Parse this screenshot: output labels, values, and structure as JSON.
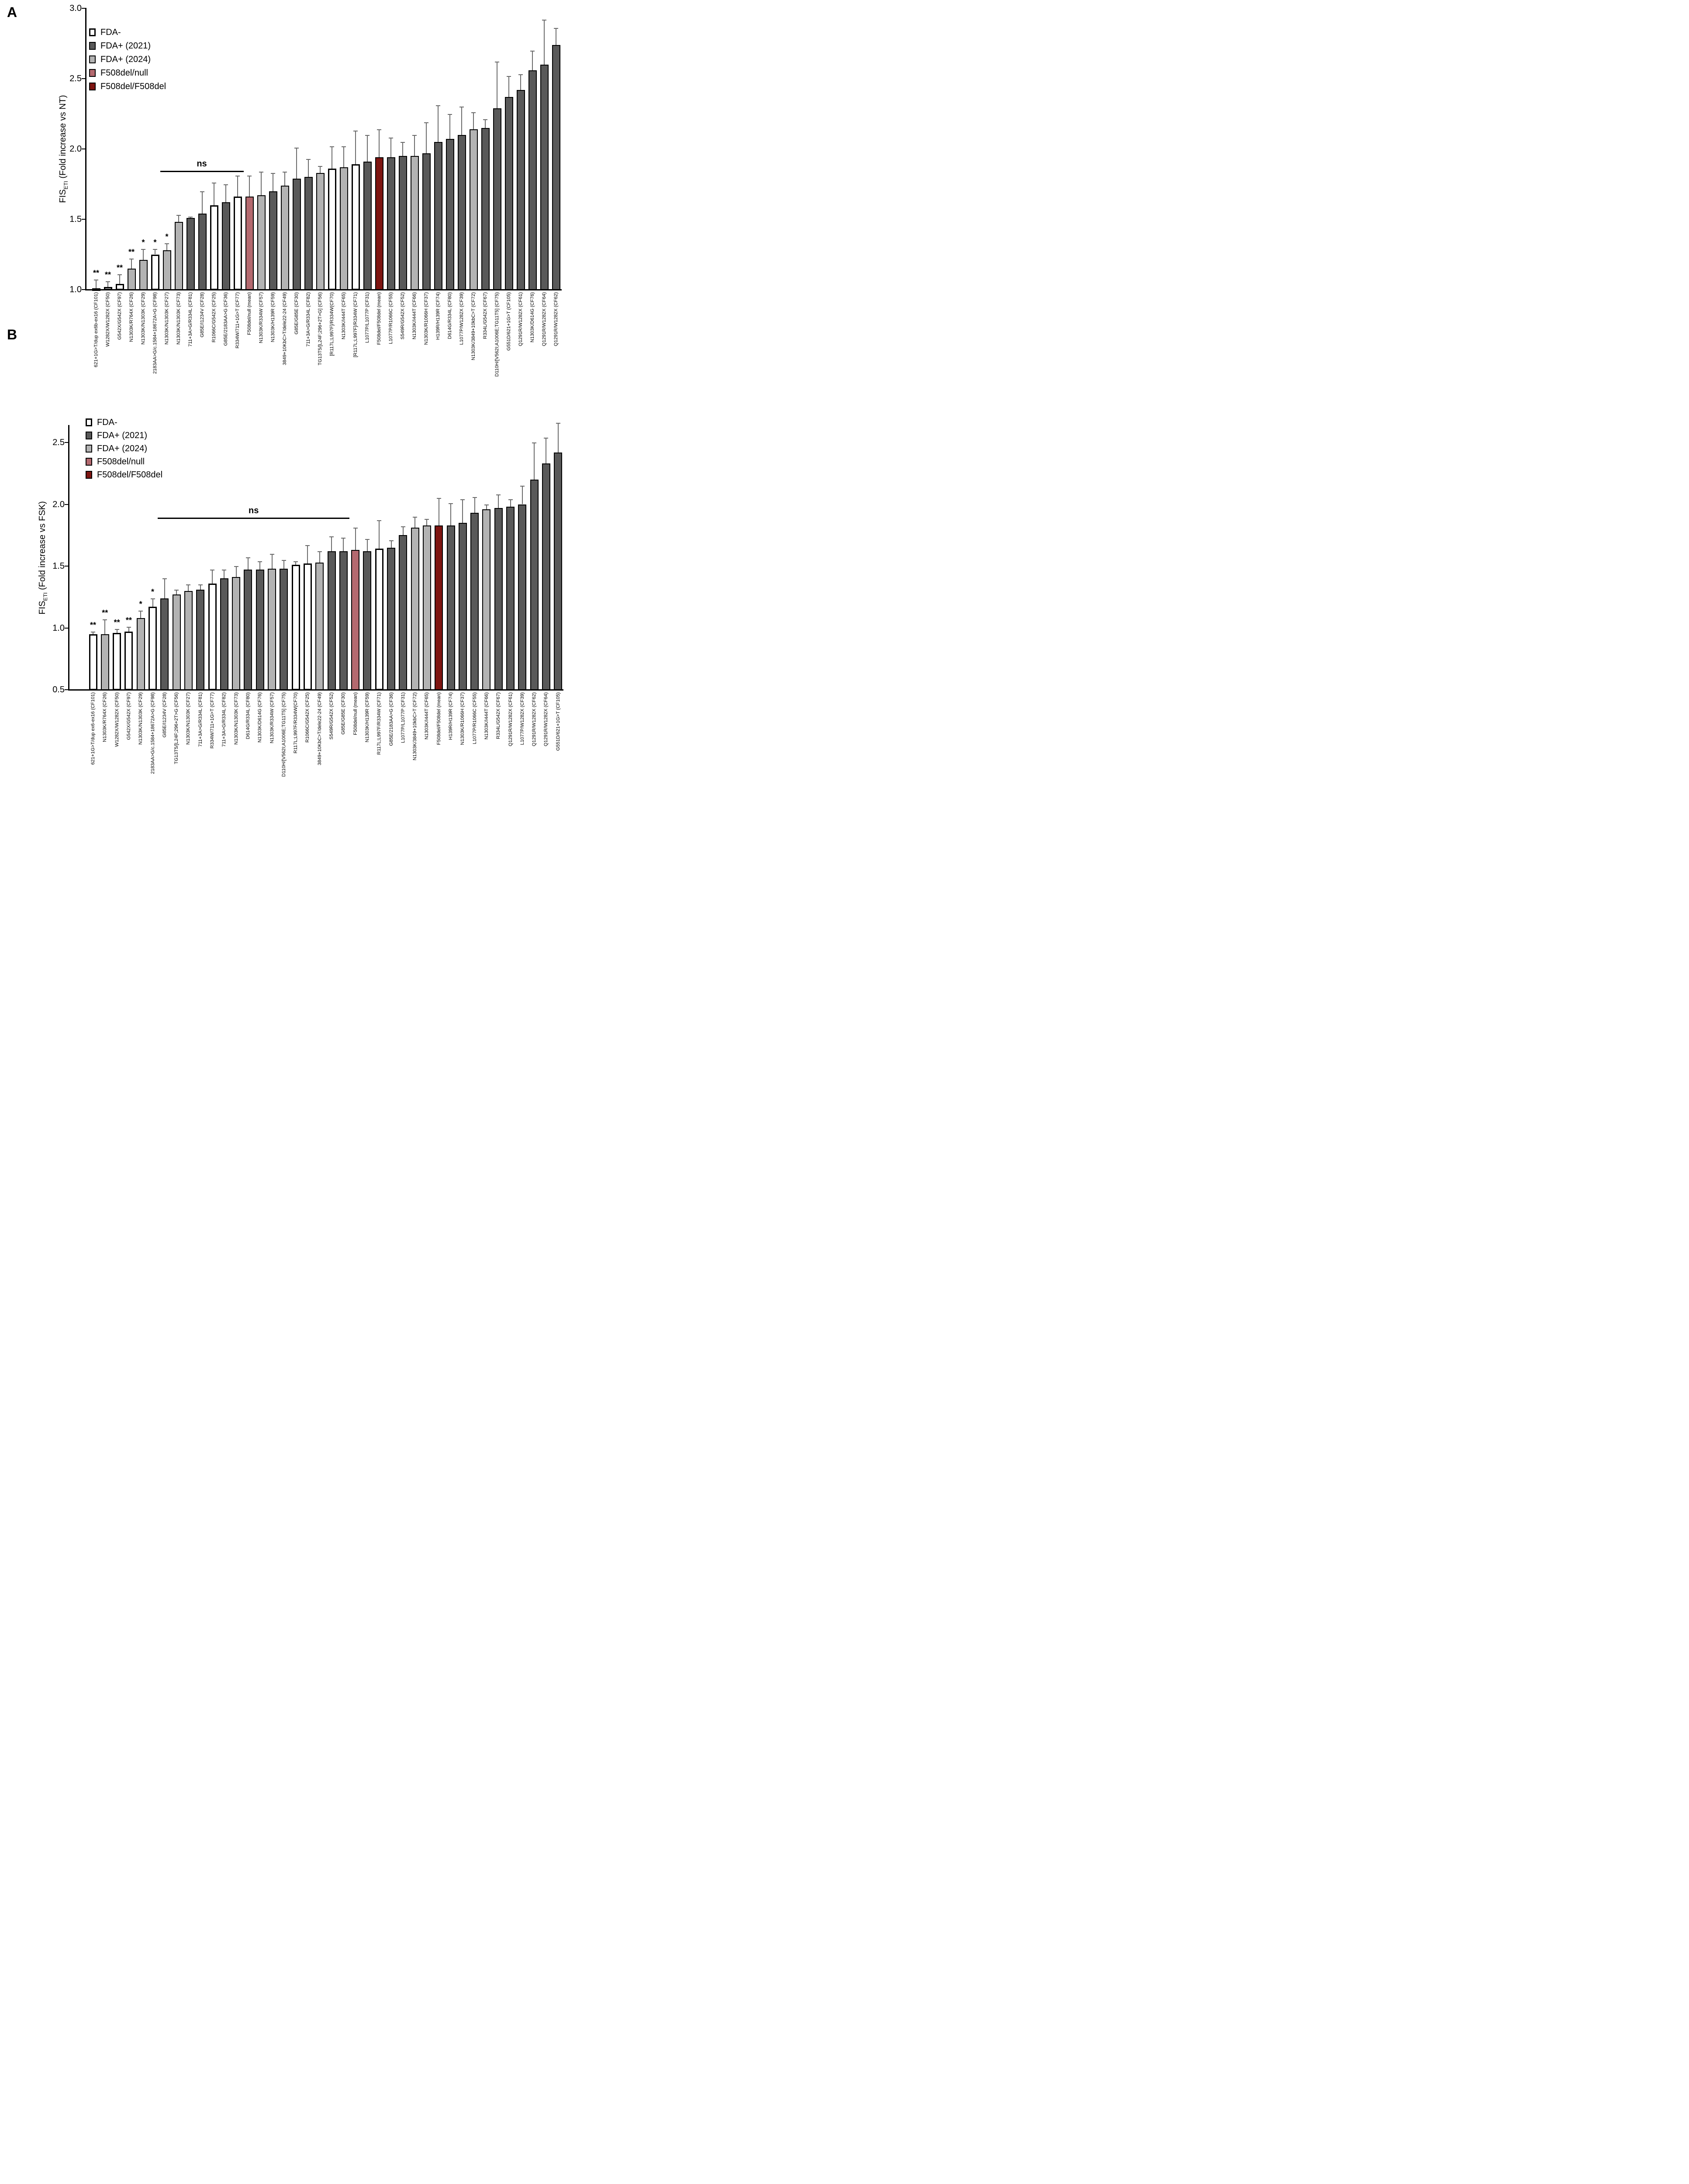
{
  "colors": {
    "fda_minus": "#ffffff",
    "fda_2021": "#595959",
    "fda_2024": "#b3b3b3",
    "f508_null": "#b4696f",
    "f508_homo": "#7e1511"
  },
  "legend": [
    {
      "label": "FDA-",
      "group": "fda_minus"
    },
    {
      "label": "FDA+ (2021)",
      "group": "fda_2021"
    },
    {
      "label": "FDA+ (2024)",
      "group": "fda_2024"
    },
    {
      "label": "F508del/null",
      "group": "f508_null"
    },
    {
      "label": "F508del/F508del",
      "group": "f508_homo"
    }
  ],
  "chart_data": [
    {
      "type": "bar",
      "id": "A",
      "panel_label": "A",
      "ylabel": {
        "main": "FIS",
        "sub": "ETI",
        "rest": " (Fold increase vs NT)"
      },
      "ylim": [
        1.0,
        3.0
      ],
      "ytick_values": [
        3.0,
        2.5,
        2.0,
        1.5,
        1.0
      ],
      "ytick_labels": [
        "3.0",
        "2.5",
        "2.0",
        "1.5",
        "1.0"
      ],
      "grid": false,
      "legend_position": "top-left",
      "ns": {
        "label": "ns",
        "start_index": 6,
        "end_index": 13
      },
      "categories": [
        "621+1G>T/dup ex6b-ex16 (CF101)",
        "W1282X/W1282X (CF50)",
        "G542X/G542X (CF97)",
        "N1303K/R764X (CF26)",
        "N1303K/N1303K (CF29)",
        "2183AA>G/c.1584+18672A>G (CF98)",
        "N1303K/N1303K (CF27)",
        "N1303K/N1303K (CF73)",
        "711+3A>G/R334L (CF81)",
        "G85E/I1234V (CF28)",
        "R1066C/G542X (CF25)",
        "G85E/2183AA>G (CF36)",
        "R334W/711+1G>T (CF77)",
        "F508del/null (mean)",
        "N1303K/R334W (CF57)",
        "N1303K/H139R (CF59)",
        "3849+10KbC>T/dele22-24 (CF49)",
        "G85E/G85E (CF30)",
        "711+3A>G/R334L (CF82)",
        "TG13T5/[L24F;296+2T>G] (CF56)",
        "[R117L;L997F]/R334W(CF70)",
        "N1303K/I444T (CF65)",
        "[R117L;L997F]/R334W (CF71)",
        "L1077P/L1077P (CF31)",
        "F508del/F508del (mean)",
        "L1077P/R1066C (CF55)",
        "S549R/G542X (CF52)",
        "N1303K/I444T (CF66)",
        "N1303K/R1066H (CF37)",
        "H139R/H139R (CF74)",
        "D614G/R334L (CF80)",
        "L1077P/W1282X (CF39)",
        "N1303K/3849+10kbC>T (CF72)",
        "R334L/G542X (CF67)",
        "D110H/[V562I;A1006E;TG11T5] (CF75)",
        "G551D/621+1G>T (CF105)",
        "Q1291R/W1282X (CF61)",
        "N1303K/D614G (CF76)",
        "Q1291R/W1282X (CF64)",
        "Q1291R/W1282X (CF62)"
      ],
      "values": [
        1.01,
        1.02,
        1.04,
        1.15,
        1.21,
        1.25,
        1.28,
        1.48,
        1.51,
        1.54,
        1.6,
        1.62,
        1.66,
        1.66,
        1.67,
        1.7,
        1.74,
        1.79,
        1.8,
        1.83,
        1.86,
        1.87,
        1.89,
        1.91,
        1.94,
        1.94,
        1.95,
        1.95,
        1.97,
        2.05,
        2.07,
        2.1,
        2.14,
        2.15,
        2.29,
        2.37,
        2.42,
        2.56,
        2.6,
        2.74
      ],
      "error_upper": [
        1.07,
        1.06,
        1.11,
        1.22,
        1.29,
        1.29,
        1.33,
        1.53,
        1.52,
        1.7,
        1.76,
        1.75,
        1.81,
        1.81,
        1.84,
        1.83,
        1.84,
        2.01,
        1.93,
        1.88,
        2.02,
        2.02,
        2.13,
        2.1,
        2.14,
        2.08,
        2.05,
        2.1,
        2.19,
        2.31,
        2.25,
        2.3,
        2.26,
        2.21,
        2.62,
        2.52,
        2.53,
        2.7,
        2.92,
        2.86
      ],
      "groups": [
        "fda_minus",
        "fda_minus",
        "fda_minus",
        "fda_2024",
        "fda_2024",
        "fda_minus",
        "fda_2024",
        "fda_2024",
        "fda_2021",
        "fda_2021",
        "fda_minus",
        "fda_2021",
        "fda_minus",
        "f508_null",
        "fda_2024",
        "fda_2021",
        "fda_2024",
        "fda_2021",
        "fda_2021",
        "fda_2024",
        "fda_minus",
        "fda_2024",
        "fda_minus",
        "fda_2021",
        "f508_homo",
        "fda_2021",
        "fda_2021",
        "fda_2024",
        "fda_2021",
        "fda_2021",
        "fda_2021",
        "fda_2021",
        "fda_2024",
        "fda_2021",
        "fda_2021",
        "fda_2021",
        "fda_2021",
        "fda_2021",
        "fda_2021",
        "fda_2021"
      ],
      "significance": [
        "**",
        "**",
        "**",
        "**",
        "*",
        "*",
        "*",
        "",
        "",
        "",
        "",
        "",
        "",
        "",
        "",
        "",
        "",
        "",
        "",
        "",
        "",
        "",
        "",
        "",
        "",
        "",
        "",
        "",
        "",
        "",
        "",
        "",
        "",
        "",
        "",
        "",
        "",
        "",
        "",
        ""
      ]
    },
    {
      "type": "bar",
      "id": "B",
      "panel_label": "B",
      "ylabel": {
        "main": "FIS",
        "sub": "ETI",
        "rest": " (Fold increase vs FSK)"
      },
      "ylim": [
        0.5,
        2.66
      ],
      "ytick_values": [
        2.5,
        2.0,
        1.5,
        1.0,
        0.5
      ],
      "ytick_labels": [
        "2.5",
        "2.0",
        "1.5",
        "1.0",
        "0.5"
      ],
      "grid": false,
      "legend_position": "top-left",
      "ns": {
        "label": "ns",
        "start_index": 6,
        "end_index": 22
      },
      "categories": [
        "621+1G>T/dup ex6-ex16 (CF101)",
        "N1303K/R764X (CF26)",
        "W1282X/W1282X (CF50)",
        "G542X/G542X (CF97)",
        "N1303K/N1303K (CF29)",
        "2183AA>G/c.1584+18672A>G (CF98)",
        "G85E/I1234V (CF28)",
        "TG13T5/[L24F;296+2T>G (CF56)",
        "N1303K/N1303K (CF27)",
        "711+3A>G/R334L (CF81)",
        "R334W/711+1G>T (CF77)",
        "711+3A>G/R334L (CF82)",
        "N1303K/N1303K (CF73)",
        "D614G/R334L (CF80)",
        "N1303K/D614G (CF76)",
        "N1303K/R334W (CF57)",
        "D110H/[V562I;A1006E;TG11T5] (CF75)",
        "R117L;L997F/R334W(CF70)",
        "R1066C/G542X (CF25)",
        "3849+10KbC>T/dele22-24 (CF49)",
        "S549R/G542X (CF52)",
        "G85E/G85E (CF30)",
        "F508del/null (mean)",
        "N1303K/H139R (CF59)",
        "R117L;L997F/R334W (CF71)",
        "G85E/2183AA>G (CF36)",
        "L1077P/L1077P (CF31)",
        "N1303K/3849+10kbC>T (CF72)",
        "N1303K/I444T (CF65)",
        "F508del/F508del (mean)",
        "H139R/H139R (CF74)",
        "N1303K/R1066H (CF37)",
        "L1077P/R1066C (CF55)",
        "N1303K/I444T (CF66)",
        "R334L/G542X (CF67)",
        "Q1291R/W1282X (CF61)",
        "L1077P/W1282X (CF39)",
        "Q1291R/W1282X (CF62)",
        "Q1291R/W1282X (CF64)",
        "G551D/621+1G>T (CF105)"
      ],
      "values": [
        0.95,
        0.95,
        0.96,
        0.97,
        1.08,
        1.17,
        1.24,
        1.27,
        1.3,
        1.31,
        1.36,
        1.4,
        1.41,
        1.47,
        1.47,
        1.48,
        1.48,
        1.51,
        1.52,
        1.53,
        1.62,
        1.62,
        1.63,
        1.62,
        1.64,
        1.65,
        1.75,
        1.81,
        1.83,
        1.83,
        1.83,
        1.85,
        1.93,
        1.96,
        1.97,
        1.98,
        2.0,
        2.2,
        2.33,
        2.42
      ],
      "error_upper": [
        0.97,
        1.07,
        0.99,
        1.01,
        1.14,
        1.24,
        1.4,
        1.31,
        1.35,
        1.35,
        1.47,
        1.47,
        1.5,
        1.57,
        1.54,
        1.6,
        1.55,
        1.54,
        1.67,
        1.62,
        1.74,
        1.73,
        1.81,
        1.72,
        1.87,
        1.71,
        1.82,
        1.9,
        1.88,
        2.05,
        2.01,
        2.04,
        2.06,
        2.0,
        2.08,
        2.04,
        2.15,
        2.5,
        2.54,
        2.66
      ],
      "groups": [
        "fda_minus",
        "fda_2024",
        "fda_minus",
        "fda_minus",
        "fda_2024",
        "fda_minus",
        "fda_2021",
        "fda_2024",
        "fda_2024",
        "fda_2021",
        "fda_minus",
        "fda_2021",
        "fda_2024",
        "fda_2021",
        "fda_2021",
        "fda_2024",
        "fda_2021",
        "fda_minus",
        "fda_minus",
        "fda_2024",
        "fda_2021",
        "fda_2021",
        "f508_null",
        "fda_2021",
        "fda_minus",
        "fda_2021",
        "fda_2021",
        "fda_2024",
        "fda_2024",
        "f508_homo",
        "fda_2021",
        "fda_2021",
        "fda_2021",
        "fda_2024",
        "fda_2021",
        "fda_2021",
        "fda_2021",
        "fda_2021",
        "fda_2021",
        "fda_2021"
      ],
      "significance": [
        "**",
        "**",
        "**",
        "**",
        "*",
        "*",
        "",
        "",
        "",
        "",
        "",
        "",
        "",
        "",
        "",
        "",
        "",
        "",
        "",
        "",
        "",
        "",
        "",
        "",
        "",
        "",
        "",
        "",
        "",
        "",
        "",
        "",
        "",
        "",
        "",
        "",
        "",
        "",
        "",
        ""
      ]
    }
  ]
}
